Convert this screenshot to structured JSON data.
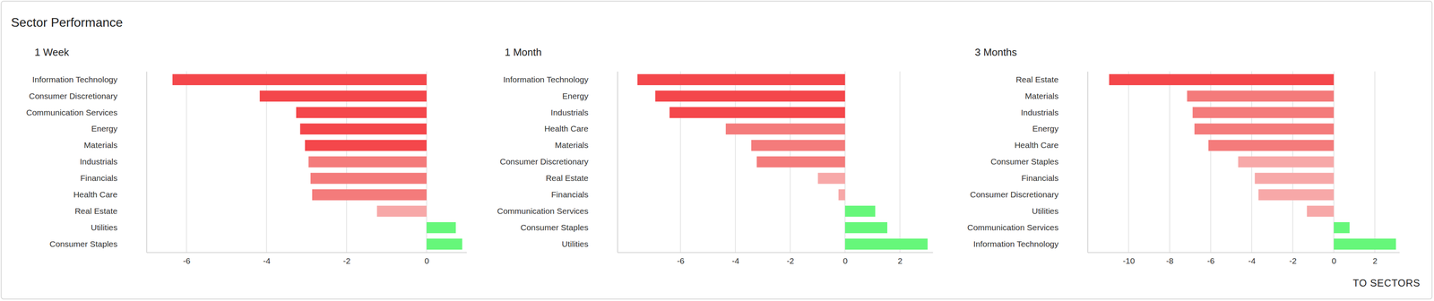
{
  "title": "Sector Performance",
  "button": "TO SECTORS",
  "chart_data": [
    {
      "type": "bar",
      "title": "1 Week",
      "orientation": "horizontal",
      "grid": true,
      "categories": [
        "Information Technology",
        "Consumer Discretionary",
        "Communication Services",
        "Energy",
        "Materials",
        "Industrials",
        "Financials",
        "Health Care",
        "Real Estate",
        "Utilities",
        "Consumer Staples"
      ],
      "values": [
        -6.35,
        -4.17,
        -3.26,
        -3.16,
        -3.04,
        -2.95,
        -2.9,
        -2.86,
        -1.24,
        0.73,
        0.89
      ],
      "colors": [
        "#f4474b",
        "#f4474b",
        "#f4474b",
        "#f4474b",
        "#f4474b",
        "#f47b7b",
        "#f47b7b",
        "#f47b7b",
        "#f7a8a8",
        "#66f77a",
        "#66f77a"
      ],
      "xlim": [
        -7,
        1
      ],
      "xticks": [
        -6,
        -4,
        -2,
        0
      ]
    },
    {
      "type": "bar",
      "title": "1 Month",
      "orientation": "horizontal",
      "grid": true,
      "categories": [
        "Information Technology",
        "Energy",
        "Industrials",
        "Health Care",
        "Materials",
        "Consumer Discretionary",
        "Real Estate",
        "Financials",
        "Communication Services",
        "Consumer Staples",
        "Utilities"
      ],
      "values": [
        -7.57,
        -6.92,
        -6.4,
        -4.35,
        -3.42,
        -3.22,
        -0.99,
        -0.24,
        1.1,
        1.54,
        3.01
      ],
      "colors": [
        "#f4474b",
        "#f4474b",
        "#f4474b",
        "#f47b7b",
        "#f47b7b",
        "#f47b7b",
        "#f7a8a8",
        "#f7a8a8",
        "#66f77a",
        "#66f77a",
        "#66f77a"
      ],
      "xlim": [
        -8.3,
        3.2
      ],
      "xticks": [
        -6,
        -4,
        -2,
        0,
        2
      ]
    },
    {
      "type": "bar",
      "title": "3 Months",
      "orientation": "horizontal",
      "grid": true,
      "categories": [
        "Real Estate",
        "Materials",
        "Industrials",
        "Energy",
        "Health Care",
        "Consumer Staples",
        "Financials",
        "Consumer Discretionary",
        "Utilities",
        "Communication Services",
        "Information Technology"
      ],
      "values": [
        -10.95,
        -7.15,
        -6.88,
        -6.79,
        -6.11,
        -4.66,
        -3.85,
        -3.67,
        -1.31,
        0.77,
        3.03
      ],
      "colors": [
        "#f4474b",
        "#f47b7b",
        "#f47b7b",
        "#f47b7b",
        "#f47b7b",
        "#f7a8a8",
        "#f7a8a8",
        "#f7a8a8",
        "#f7a8a8",
        "#66f77a",
        "#66f77a"
      ],
      "xlim": [
        -12,
        3.2
      ],
      "xticks": [
        -10,
        -8,
        -6,
        -4,
        -2,
        0,
        2
      ]
    }
  ]
}
